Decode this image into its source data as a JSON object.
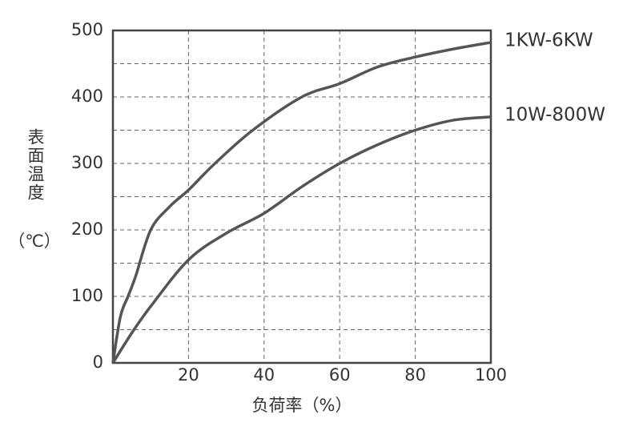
{
  "chart_data": {
    "type": "line",
    "y_label": "表面温度",
    "y_unit": "（℃）",
    "x_label": "负荷率（%）",
    "xlim": [
      0,
      100
    ],
    "xticks": [
      20,
      40,
      60,
      80,
      100
    ],
    "ylim": [
      0,
      500
    ],
    "yticks": [
      0,
      100,
      200,
      300,
      400,
      500
    ],
    "y_minor_grid": [
      50,
      150,
      250,
      350,
      450
    ],
    "grid": true,
    "series": [
      {
        "name": "1KW-6KW",
        "color": "#555555",
        "x": [
          0,
          2,
          4,
          6,
          10,
          15,
          20,
          27,
          37,
          50,
          60,
          70,
          80,
          90,
          100
        ],
        "values": [
          0,
          70,
          100,
          130,
          200,
          235,
          260,
          300,
          350,
          400,
          420,
          445,
          460,
          472,
          482
        ]
      },
      {
        "name": "10W-800W",
        "color": "#555555",
        "x": [
          0,
          5,
          10,
          20,
          30,
          40,
          50,
          60,
          70,
          80,
          90,
          100
        ],
        "values": [
          0,
          45,
          85,
          155,
          195,
          225,
          265,
          300,
          328,
          350,
          365,
          370
        ]
      }
    ]
  }
}
